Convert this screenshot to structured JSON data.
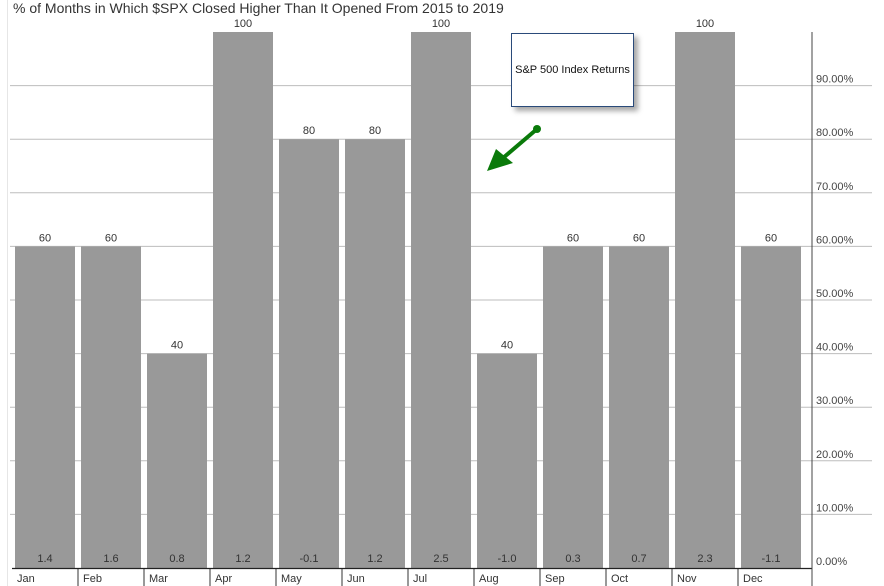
{
  "chart_data": {
    "type": "bar",
    "title": "% of Months in Which $SPX Closed Higher Than It Opened From 2015 to 2019",
    "categories": [
      "Jan",
      "Feb",
      "Mar",
      "Apr",
      "May",
      "Jun",
      "Jul",
      "Aug",
      "Sep",
      "Oct",
      "Nov",
      "Dec"
    ],
    "values": [
      60,
      60,
      40,
      100,
      80,
      80,
      100,
      40,
      60,
      60,
      100,
      60
    ],
    "avg_returns": [
      "1.4",
      "1.6",
      "0.8",
      "1.2",
      "-0.1",
      "1.2",
      "2.5",
      "-1.0",
      "0.3",
      "0.7",
      "2.3",
      "-1.1"
    ],
    "ylim": [
      0,
      100
    ],
    "y_ticks": [
      "0.00%",
      "10.00%",
      "20.00%",
      "30.00%",
      "40.00%",
      "50.00%",
      "60.00%",
      "70.00%",
      "80.00%",
      "90.00%"
    ],
    "y_axis_position": "right",
    "grid": true,
    "bar_color": "#999999",
    "annotation": {
      "text": "S&P 500 Index Returns",
      "arrow_color": "#0a7a0a"
    }
  }
}
